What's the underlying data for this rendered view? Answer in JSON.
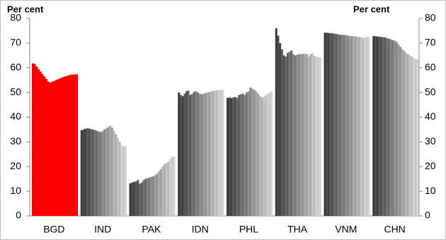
{
  "chart_data": {
    "type": "bar",
    "y_label": "Per cent",
    "y2_label": "Per cent",
    "categories": [
      "BGD",
      "IND",
      "PAK",
      "IDN",
      "PHL",
      "THA",
      "VNM",
      "CHN"
    ],
    "colors": [
      "#ff0000",
      "gradient",
      "gradient",
      "gradient",
      "gradient",
      "gradient",
      "gradient",
      "gradient"
    ],
    "gradient": [
      "#3a3a3a",
      "#d4d4d4"
    ],
    "values": [
      [
        61.8,
        61.5,
        60.5,
        59.5,
        58.5,
        57.5,
        56.5,
        55.5,
        54.5,
        54,
        54.3,
        54.6,
        55,
        55.3,
        55.6,
        56,
        56.3,
        56.5,
        56.7,
        57,
        57.2,
        57.3,
        57.3,
        57.4
      ],
      [
        34.7,
        35,
        35.3,
        35.5,
        35.4,
        35.2,
        35,
        34.8,
        34.5,
        34.2,
        34,
        34.3,
        35,
        35.5,
        36,
        36.6,
        35.8,
        34.5,
        33,
        31.5,
        30,
        28.5,
        28.3,
        28.3
      ],
      [
        13.2,
        13.5,
        13.8,
        14,
        14.5,
        13,
        13.5,
        14.5,
        15,
        15.3,
        15.5,
        15.8,
        16,
        16.5,
        17,
        18,
        19,
        20,
        21,
        21.5,
        22,
        23,
        24,
        24
      ],
      [
        50,
        49,
        48.5,
        49.5,
        50.5,
        50.8,
        49,
        49.5,
        50.3,
        50.5,
        50,
        49.5,
        49.3,
        49.5,
        49.8,
        50,
        50.2,
        50.5,
        50.6,
        50.8,
        51,
        51,
        51.1,
        51.2
      ],
      [
        47.8,
        48,
        47.7,
        48,
        48.2,
        47.8,
        49,
        49.3,
        49.5,
        49,
        50,
        50.5,
        52,
        51.5,
        51,
        50.5,
        49.5,
        48.5,
        48,
        48.2,
        48.8,
        49.5,
        50,
        50.5
      ],
      [
        76,
        73,
        70,
        67.5,
        65,
        64.5,
        66,
        66.5,
        67,
        65.5,
        65,
        65.3,
        65.5,
        65.5,
        65.6,
        65.7,
        65.5,
        64.5,
        65.5,
        66,
        64.8,
        64.5,
        64.3,
        64.3
      ],
      [
        74.2,
        74.2,
        74.1,
        74,
        74,
        73.8,
        73.7,
        73.5,
        73.4,
        73.3,
        73.3,
        73.2,
        73,
        72.9,
        72.8,
        72.8,
        72.7,
        72.6,
        72.5,
        72.3,
        72.2,
        72.3,
        72.5,
        72.5
      ],
      [
        72.8,
        72.8,
        72.7,
        72.6,
        72.5,
        72.4,
        72.3,
        72,
        71.8,
        71.5,
        71.2,
        71,
        70.5,
        69.5,
        68.5,
        67.5,
        66.8,
        66,
        65.5,
        65,
        64.5,
        64,
        63.5,
        63.5
      ]
    ],
    "ylim": [
      0,
      80
    ],
    "yticks": [
      0,
      10,
      20,
      30,
      40,
      50,
      60,
      70,
      80
    ],
    "y2lim": [
      0,
      80
    ],
    "y2ticks": [
      0,
      10,
      20,
      30,
      40,
      50,
      60,
      70,
      80
    ],
    "grid": false
  }
}
